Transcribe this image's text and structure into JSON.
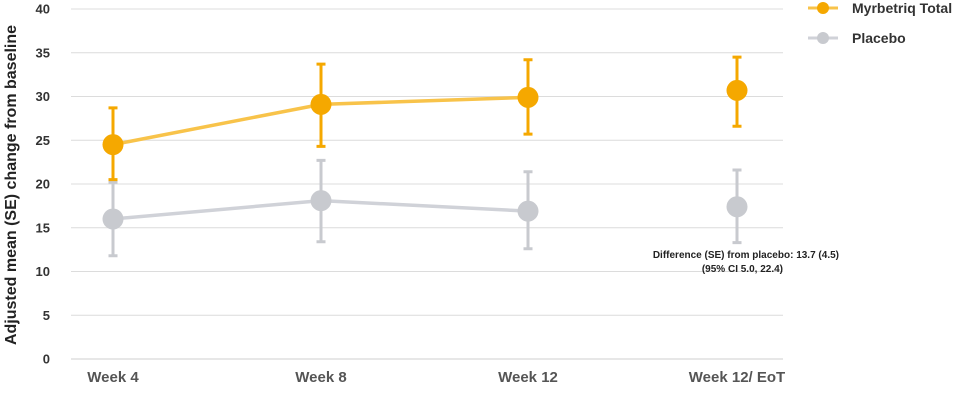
{
  "chart_data": {
    "type": "line",
    "categories": [
      "Week 4",
      "Week 8",
      "Week 12",
      "Week 12/ EoT"
    ],
    "ylabel": "Adjusted mean (SE) change from baseline",
    "xlabel": "",
    "ylim": [
      0,
      40
    ],
    "yticks": [
      0,
      5,
      10,
      15,
      20,
      25,
      30,
      35,
      40
    ],
    "grid": true,
    "legend_position": "top-right",
    "series": [
      {
        "name": "Myrbetriq Total",
        "color": "#f5a800",
        "line_color": "#f8c34a",
        "values": [
          24.5,
          29.1,
          29.9,
          30.7
        ],
        "error_low": [
          20.5,
          24.3,
          25.7,
          26.6
        ],
        "error_high": [
          28.7,
          33.7,
          34.2,
          34.5
        ],
        "connected": [
          true,
          true,
          true,
          false
        ]
      },
      {
        "name": "Placebo",
        "color": "#c8cacf",
        "line_color": "#d0d2d8",
        "values": [
          16.0,
          18.1,
          16.9,
          17.4
        ],
        "error_low": [
          11.8,
          13.4,
          12.6,
          13.3
        ],
        "error_high": [
          20.2,
          22.7,
          21.4,
          21.6
        ],
        "connected": [
          true,
          true,
          true,
          false
        ]
      }
    ],
    "annotations": [
      "Difference (SE) from placebo: 13.7 (4.5)",
      "(95% CI 5.0, 22.4)"
    ]
  }
}
